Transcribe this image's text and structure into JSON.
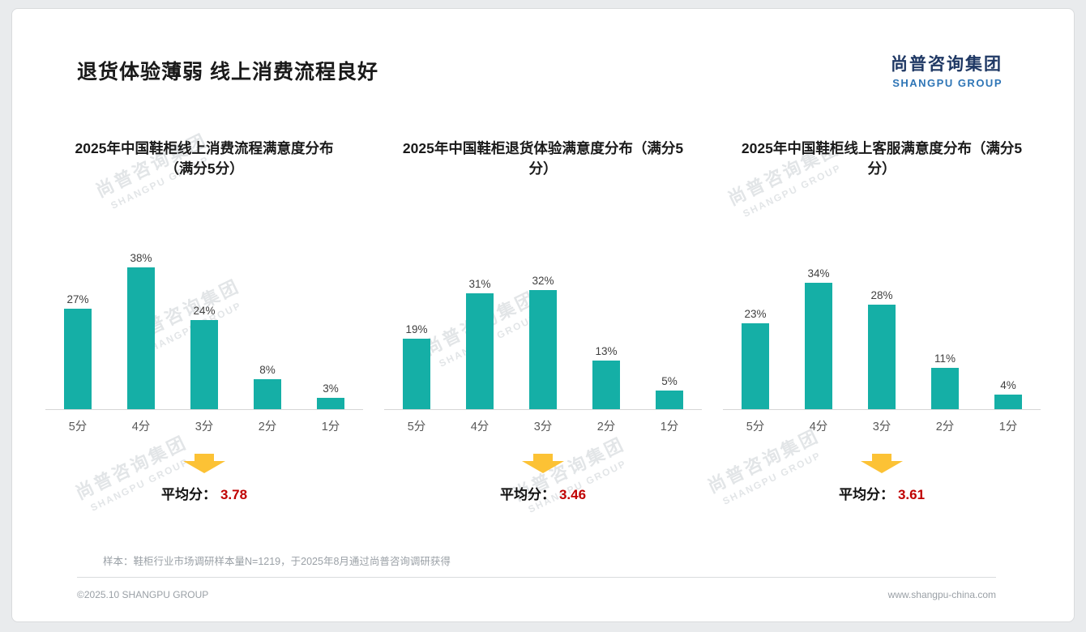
{
  "header": {
    "title": "退货体验薄弱 线上消费流程良好",
    "logo_cn": "尚普咨询集团",
    "logo_en": "SHANGPU GROUP"
  },
  "watermark": {
    "cn": "尚普咨询集团",
    "en": "SHANGPU GROUP"
  },
  "colors": {
    "bar": "#15afa6",
    "average_red": "#c00000",
    "arrow_yellow": "#fcc235",
    "logo_blue_dark": "#1f3864",
    "logo_blue_light": "#2e75b6"
  },
  "charts_common": {
    "average_label": "平均分："
  },
  "chart_data": [
    {
      "type": "bar",
      "title": "2025年中国鞋柜线上消费流程满意度分布（满分5分）",
      "categories": [
        "5分",
        "4分",
        "3分",
        "2分",
        "1分"
      ],
      "values": [
        27,
        38,
        24,
        8,
        3
      ],
      "unit": "%",
      "average": 3.78,
      "average_text": "3.78",
      "ylim": [
        0,
        40
      ],
      "grid": false,
      "legend": "none",
      "xlabel": "",
      "ylabel": ""
    },
    {
      "type": "bar",
      "title": "2025年中国鞋柜退货体验满意度分布（满分5分）",
      "categories": [
        "5分",
        "4分",
        "3分",
        "2分",
        "1分"
      ],
      "values": [
        19,
        31,
        32,
        13,
        5
      ],
      "unit": "%",
      "average": 3.46,
      "average_text": "3.46",
      "ylim": [
        0,
        40
      ],
      "grid": false,
      "legend": "none",
      "xlabel": "",
      "ylabel": ""
    },
    {
      "type": "bar",
      "title": "2025年中国鞋柜线上客服满意度分布（满分5分）",
      "categories": [
        "5分",
        "4分",
        "3分",
        "2分",
        "1分"
      ],
      "values": [
        23,
        34,
        28,
        11,
        4
      ],
      "unit": "%",
      "average": 3.61,
      "average_text": "3.61",
      "ylim": [
        0,
        40
      ],
      "grid": false,
      "legend": "none",
      "xlabel": "",
      "ylabel": ""
    }
  ],
  "footer": {
    "note": "样本：鞋柜行业市场调研样本量N=1219，于2025年8月通过尚普咨询调研获得",
    "left": "©2025.10 SHANGPU GROUP",
    "right": "www.shangpu-china.com"
  }
}
